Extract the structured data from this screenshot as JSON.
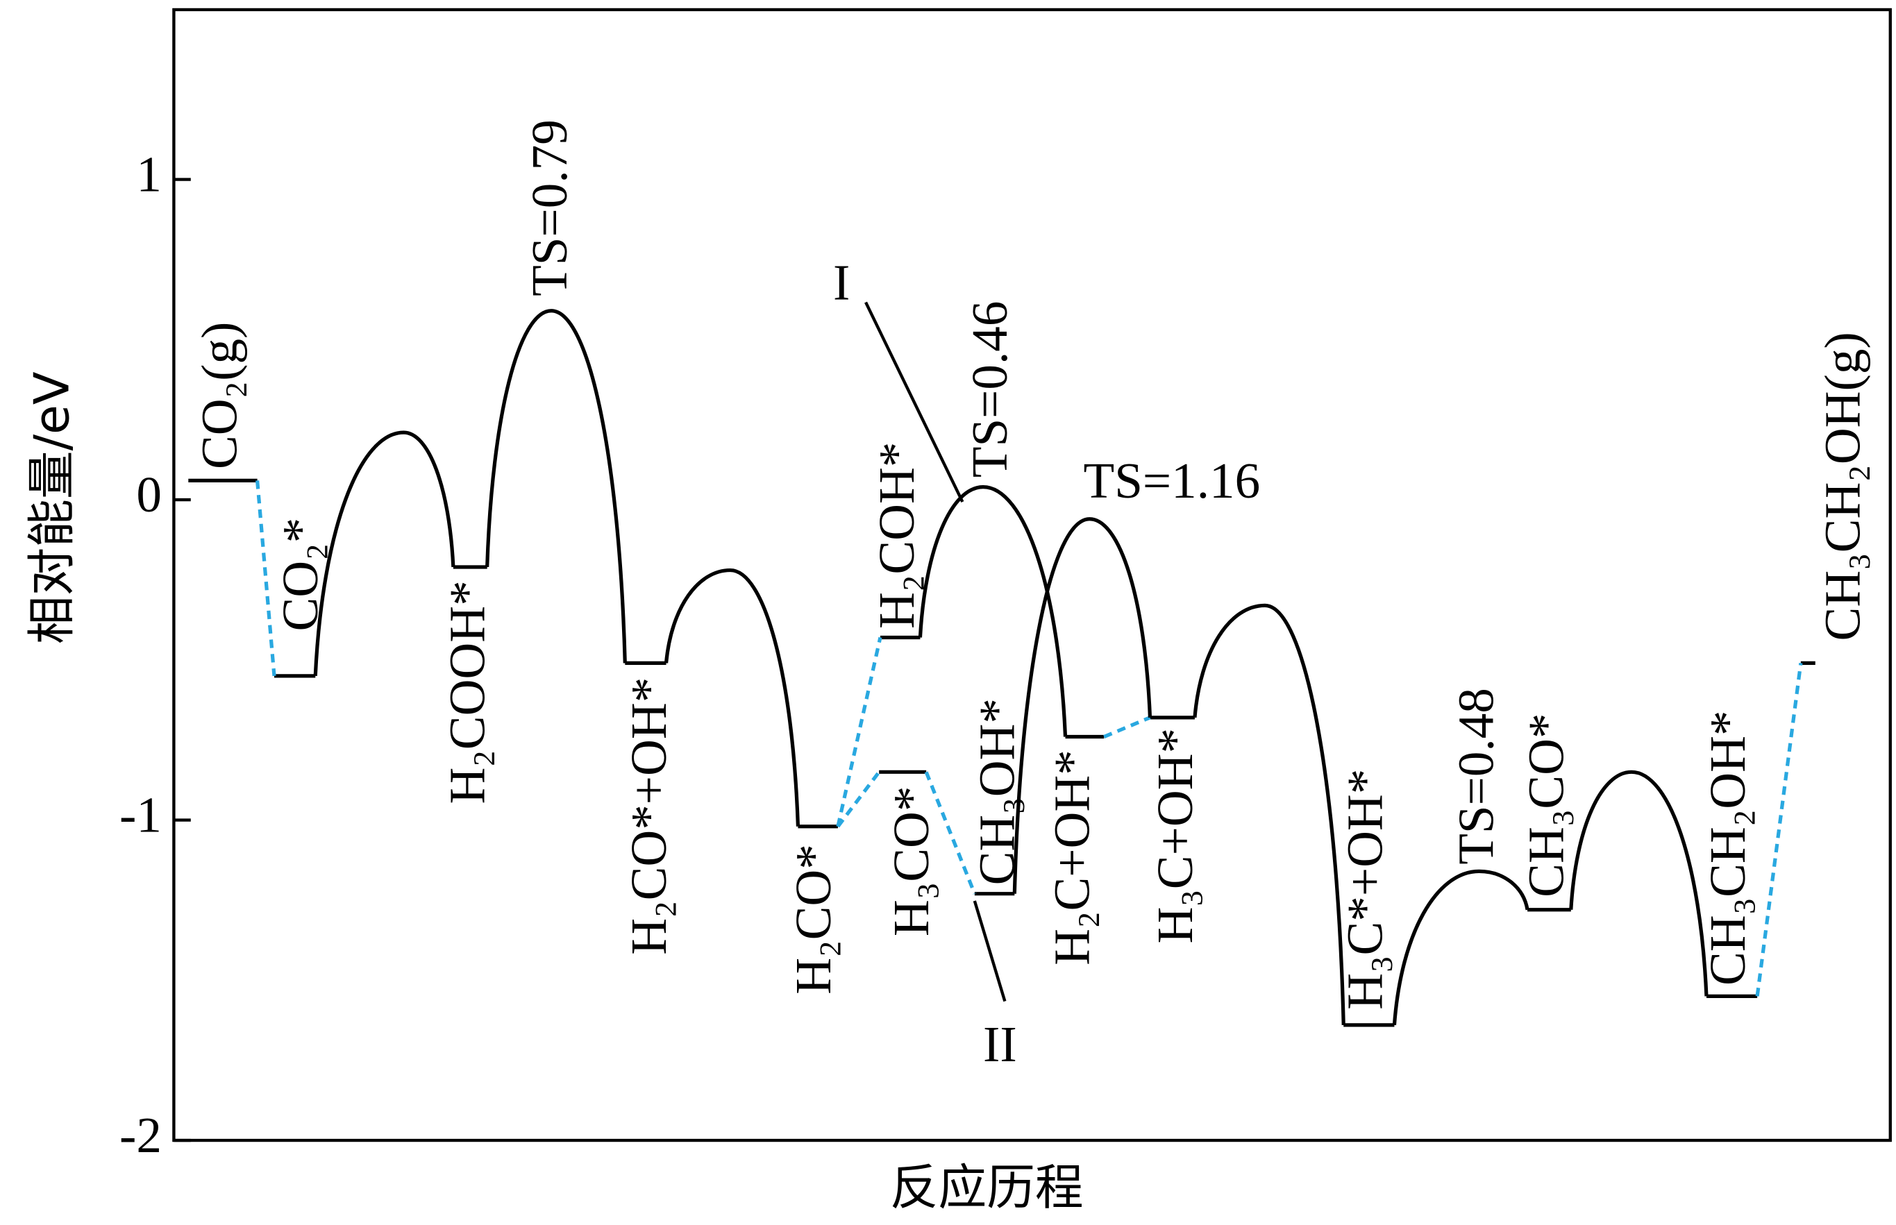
{
  "chart_data": {
    "type": "profile",
    "ylabel": "相对能量/eV",
    "xlabel": "反应历程",
    "ylim": [
      -2,
      1.53
    ],
    "yticks": [
      -2,
      -1,
      0,
      1
    ],
    "line_color": "#000000",
    "dash_color": "#29a8e0",
    "levels": [
      {
        "label": "CO₂(g)",
        "value": 0.06
      },
      {
        "label": "CO₂*",
        "value": -0.55
      },
      {
        "label": "H₂COOH*",
        "value": -0.21
      },
      {
        "label": "H₂CO*+OH*",
        "value": -0.51
      },
      {
        "label": "H₂CO*",
        "value": -1.02
      },
      {
        "label": "H₂COH*",
        "value": -0.43
      },
      {
        "label": "H₃CO*",
        "value": -0.85
      },
      {
        "label": "CH₃OH*",
        "value": -1.23
      },
      {
        "label": "H₂C+OH*",
        "value": -0.74
      },
      {
        "label": "H₃C+OH*",
        "value": -0.68
      },
      {
        "label": "H₃C*+OH*",
        "value": -1.64
      },
      {
        "label": "CH₃CO*",
        "value": -1.28
      },
      {
        "label": "CH₃CH₂OH*",
        "value": -1.55
      },
      {
        "label": "CH₃CH₂OH(g)",
        "value": -0.51
      }
    ],
    "peaks": [
      {
        "value": 0.21
      },
      {
        "value": 0.59,
        "annotation": "TS=0.79"
      },
      {
        "value": -0.22
      },
      {
        "value": 0.04,
        "annotation": "TS=0.46"
      },
      {
        "value": -0.06,
        "annotation": "TS=1.16"
      },
      {
        "value": -0.33
      },
      {
        "value": -1.16,
        "annotation": "TS=0.48"
      },
      {
        "value": -0.85
      }
    ],
    "pathway_labels": [
      "I",
      "II"
    ]
  }
}
